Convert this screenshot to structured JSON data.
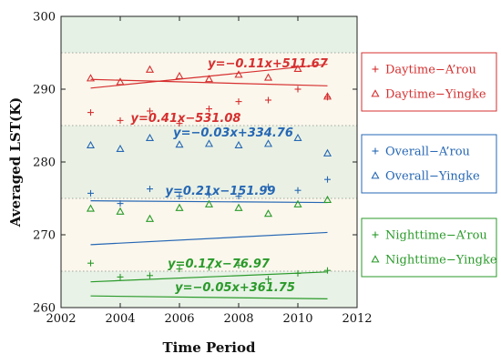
{
  "chart_data": {
    "type": "scatter",
    "xlabel": "Time Period",
    "ylabel": "Averaged LST(K)",
    "xlim": [
      2002,
      2012
    ],
    "ylim": [
      260,
      300
    ],
    "xticks": [
      "2002",
      "2004",
      "2006",
      "2008",
      "2010",
      "2012"
    ],
    "yticks": [
      "260",
      "270",
      "280",
      "290",
      "300"
    ],
    "background_bands": [
      {
        "from": 295,
        "to": 300,
        "color": "#e4f1e4"
      },
      {
        "from": 285,
        "to": 295,
        "color": "#fbf7ec"
      },
      {
        "from": 275,
        "to": 285,
        "color": "#eaf1e4"
      },
      {
        "from": 265,
        "to": 275,
        "color": "#fbf7ec"
      },
      {
        "from": 260,
        "to": 265,
        "color": "#e8f2e6"
      }
    ],
    "dotted_gridlines_y": [
      265,
      275,
      285,
      295
    ],
    "groups": [
      {
        "color": "#d62f2f",
        "legend": [
          {
            "marker": "plus",
            "label": "Daytime−A’rou"
          },
          {
            "marker": "triangle",
            "label": "Daytime−Yingke"
          }
        ],
        "series": [
          {
            "marker": "plus",
            "x": [
              2003,
              2004,
              2005,
              2006,
              2007,
              2008,
              2009,
              2010,
              2011
            ],
            "y": [
              286.8,
              285.7,
              287.0,
              285.3,
              287.3,
              288.3,
              288.5,
              290.0,
              288.9
            ],
            "fit": {
              "slope": 0.41,
              "intercept": -531.08,
              "label": "y=0.41x−531.08"
            }
          },
          {
            "marker": "triangle",
            "x": [
              2003,
              2004,
              2005,
              2006,
              2007,
              2008,
              2009,
              2010,
              2011
            ],
            "y": [
              291.5,
              291.0,
              292.7,
              291.8,
              291.4,
              292.0,
              291.6,
              292.8,
              289.0
            ],
            "fit": {
              "slope": -0.11,
              "intercept": 511.67,
              "label": "y=−0.11x+511.67"
            }
          }
        ]
      },
      {
        "color": "#2667b4",
        "legend": [
          {
            "marker": "plus",
            "label": "Overall−A’rou"
          },
          {
            "marker": "triangle",
            "label": "Overall−Yingke"
          }
        ],
        "series": [
          {
            "marker": "plus",
            "x": [
              2003,
              2004,
              2005,
              2006,
              2007,
              2008,
              2009,
              2010,
              2011
            ],
            "y": [
              275.7,
              274.3,
              276.3,
              275.3,
              275.5,
              275.3,
              276.6,
              276.1,
              277.6
            ],
            "fit": {
              "slope": 0.21,
              "intercept": -151.99,
              "label": "y=0.21x−151.99"
            }
          },
          {
            "marker": "triangle",
            "x": [
              2003,
              2004,
              2005,
              2006,
              2007,
              2008,
              2009,
              2010,
              2011
            ],
            "y": [
              282.3,
              281.8,
              283.3,
              282.4,
              282.5,
              282.3,
              282.5,
              283.3,
              281.2
            ],
            "fit": {
              "slope": -0.03,
              "intercept": 334.76,
              "label": "y=−0.03x+334.76"
            }
          }
        ]
      },
      {
        "color": "#2a9a2a",
        "legend": [
          {
            "marker": "plus",
            "label": "Nighttime−A’rou"
          },
          {
            "marker": "triangle",
            "label": "Nighttime−Yingke"
          }
        ],
        "series": [
          {
            "marker": "plus",
            "x": [
              2003,
              2004,
              2005,
              2006,
              2007,
              2008,
              2009,
              2010,
              2011
            ],
            "y": [
              266.1,
              264.2,
              264.4,
              265.3,
              265.5,
              265.8,
              263.9,
              264.7,
              265.1
            ],
            "fit": {
              "slope": -0.05,
              "intercept": 361.75,
              "label": "y=−0.05x+361.75"
            }
          },
          {
            "marker": "triangle",
            "x": [
              2003,
              2004,
              2005,
              2006,
              2007,
              2008,
              2009,
              2010,
              2011
            ],
            "y": [
              273.6,
              273.2,
              272.2,
              273.7,
              274.2,
              273.7,
              272.9,
              274.2,
              274.8
            ],
            "fit": {
              "slope": 0.17,
              "intercept": -76.97,
              "label": "y=0.17x−76.97"
            }
          }
        ]
      }
    ],
    "legend_placement": "right"
  }
}
